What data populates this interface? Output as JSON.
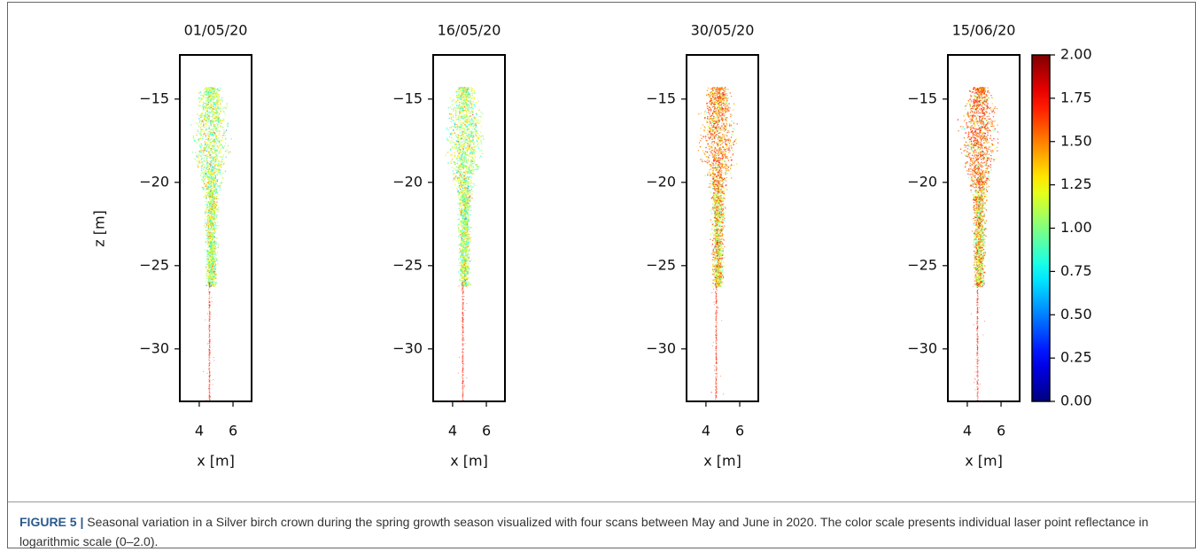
{
  "chart_data": [
    {
      "type": "scatter",
      "title": "01/05/20",
      "xlabel": "x [m]",
      "ylabel": "z [m]",
      "xlim": [
        2.85,
        7.1
      ],
      "ylim": [
        -33.15,
        -12.35
      ],
      "xticks": [
        4,
        6
      ],
      "yticks": [
        {
          "value": -15,
          "label": "−15"
        },
        {
          "value": -20,
          "label": "−20"
        },
        {
          "value": -25,
          "label": "−25"
        },
        {
          "value": -30,
          "label": "−30"
        }
      ]
    },
    {
      "type": "scatter",
      "title": "16/05/20",
      "xlabel": "x [m]",
      "xlim": [
        2.85,
        7.1
      ],
      "ylim": [
        -33.15,
        -12.35
      ],
      "xticks": [
        4,
        6
      ],
      "yticks": [
        {
          "value": -15,
          "label": "−15"
        },
        {
          "value": -20,
          "label": "−20"
        },
        {
          "value": -25,
          "label": "−25"
        },
        {
          "value": -30,
          "label": "−30"
        }
      ]
    },
    {
      "type": "scatter",
      "title": "30/05/20",
      "xlabel": "x [m]",
      "xlim": [
        2.85,
        7.1
      ],
      "ylim": [
        -33.15,
        -12.35
      ],
      "xticks": [
        4,
        6
      ],
      "yticks": [
        {
          "value": -15,
          "label": "−15"
        },
        {
          "value": -20,
          "label": "−20"
        },
        {
          "value": -25,
          "label": "−25"
        },
        {
          "value": -30,
          "label": "−30"
        }
      ]
    },
    {
      "type": "scatter",
      "title": "15/06/20",
      "xlabel": "x [m]",
      "xlim": [
        2.85,
        7.1
      ],
      "ylim": [
        -33.15,
        -12.35
      ],
      "xticks": [
        4,
        6
      ],
      "yticks": [
        {
          "value": -15,
          "label": "−15"
        },
        {
          "value": -20,
          "label": "−20"
        },
        {
          "value": -25,
          "label": "−25"
        },
        {
          "value": -30,
          "label": "−30"
        }
      ]
    },
    {
      "type": "colorbar",
      "colormap": "jet",
      "ylim": [
        0,
        2
      ],
      "yticks": [
        {
          "value": 0,
          "label": "0.00"
        },
        {
          "value": 0.25,
          "label": "0.25"
        },
        {
          "value": 0.5,
          "label": "0.50"
        },
        {
          "value": 0.75,
          "label": "0.75"
        },
        {
          "value": 1,
          "label": "1.00"
        },
        {
          "value": 1.25,
          "label": "1.25"
        },
        {
          "value": 1.5,
          "label": "1.50"
        },
        {
          "value": 1.75,
          "label": "1.75"
        },
        {
          "value": 2,
          "label": "2.00"
        }
      ]
    }
  ],
  "caption": {
    "label": "FIGURE 5 |",
    "text": "Seasonal variation in a Silver birch crown during the spring growth season visualized with four scans between May and June in 2020. The color scale presents individual laser point reflectance in logarithmic scale (0–2.0)."
  }
}
